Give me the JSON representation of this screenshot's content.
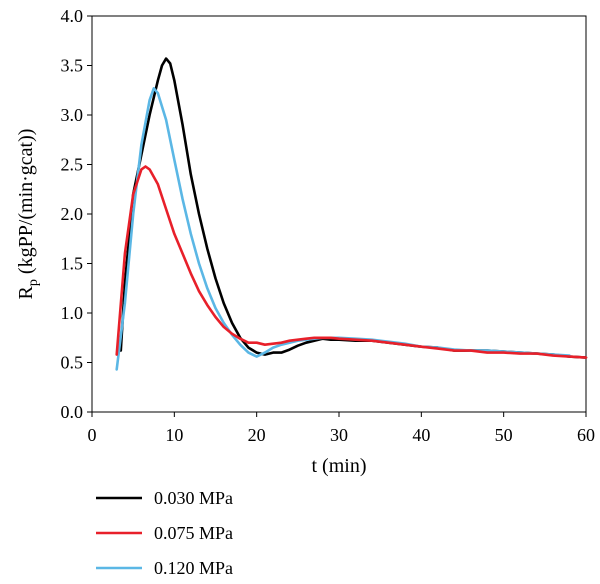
{
  "chart_data": {
    "type": "line",
    "title": "",
    "xlabel": "t (min)",
    "ylabel": "R",
    "ylabel_subscript": "p",
    "ylabel_unit": " (kgPP/(min·gcat))",
    "xlim": [
      0,
      60
    ],
    "ylim": [
      0,
      4
    ],
    "x_ticks": [
      "0",
      "10",
      "20",
      "30",
      "40",
      "50",
      "60"
    ],
    "y_ticks": [
      "0.0",
      "0.5",
      "1.0",
      "1.5",
      "2.0",
      "2.5",
      "3.0",
      "3.5",
      "4.0"
    ],
    "grid": false,
    "legend_position": "bottom-left",
    "series": [
      {
        "name": "0.030 MPa",
        "color": "#000000",
        "x": [
          3.5,
          4,
          5,
          6,
          7,
          8,
          8.5,
          9,
          9.5,
          10,
          11,
          12,
          13,
          14,
          15,
          16,
          17,
          18,
          19,
          20,
          21,
          22,
          23,
          24,
          25,
          26,
          27,
          28,
          29,
          30,
          32,
          34,
          36,
          38,
          40,
          42,
          44,
          46,
          48,
          50,
          52,
          54,
          56,
          58,
          60
        ],
        "y": [
          0.62,
          1.3,
          2.2,
          2.6,
          3.0,
          3.35,
          3.5,
          3.57,
          3.52,
          3.35,
          2.9,
          2.4,
          2.0,
          1.65,
          1.35,
          1.1,
          0.9,
          0.75,
          0.65,
          0.6,
          0.58,
          0.6,
          0.6,
          0.63,
          0.67,
          0.7,
          0.72,
          0.74,
          0.73,
          0.73,
          0.72,
          0.72,
          0.7,
          0.68,
          0.66,
          0.65,
          0.62,
          0.62,
          0.62,
          0.61,
          0.6,
          0.59,
          0.58,
          0.56,
          0.55
        ]
      },
      {
        "name": "0.075 MPa",
        "color": "#e8202a",
        "x": [
          3,
          4,
          5,
          6,
          6.5,
          7,
          8,
          9,
          10,
          11,
          12,
          13,
          14,
          15,
          16,
          17,
          18,
          19,
          20,
          21,
          22,
          23,
          24,
          25,
          26,
          27,
          28,
          29,
          30,
          32,
          34,
          36,
          38,
          40,
          42,
          44,
          46,
          48,
          50,
          52,
          54,
          56,
          58,
          60
        ],
        "y": [
          0.58,
          1.6,
          2.2,
          2.45,
          2.48,
          2.45,
          2.3,
          2.05,
          1.8,
          1.6,
          1.4,
          1.22,
          1.08,
          0.96,
          0.86,
          0.79,
          0.74,
          0.7,
          0.7,
          0.68,
          0.69,
          0.7,
          0.72,
          0.73,
          0.74,
          0.75,
          0.75,
          0.75,
          0.74,
          0.73,
          0.72,
          0.7,
          0.68,
          0.66,
          0.64,
          0.62,
          0.62,
          0.6,
          0.6,
          0.59,
          0.59,
          0.57,
          0.56,
          0.55
        ]
      },
      {
        "name": "0.120 MPa",
        "color": "#5bb7e5",
        "x": [
          3,
          4,
          5,
          6,
          7,
          7.5,
          8,
          9,
          10,
          11,
          12,
          13,
          14,
          15,
          16,
          17,
          18,
          19,
          20,
          21,
          22,
          23,
          24,
          25,
          26,
          27,
          28,
          29,
          30,
          32,
          34,
          36,
          38,
          40,
          42,
          44,
          46,
          48,
          50,
          52,
          54,
          56,
          58
        ],
        "y": [
          0.43,
          1.1,
          2.0,
          2.7,
          3.15,
          3.27,
          3.22,
          2.95,
          2.55,
          2.15,
          1.8,
          1.5,
          1.25,
          1.05,
          0.9,
          0.78,
          0.68,
          0.6,
          0.56,
          0.6,
          0.65,
          0.68,
          0.7,
          0.72,
          0.73,
          0.74,
          0.75,
          0.75,
          0.75,
          0.74,
          0.73,
          0.71,
          0.69,
          0.66,
          0.65,
          0.63,
          0.62,
          0.62,
          0.61,
          0.6,
          0.59,
          0.58,
          0.57
        ]
      }
    ]
  }
}
